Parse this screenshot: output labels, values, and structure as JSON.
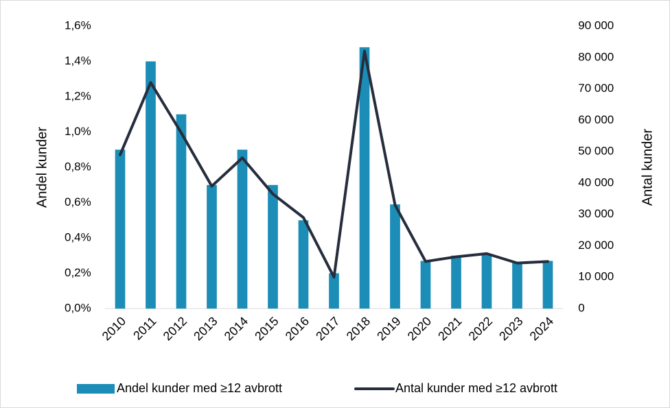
{
  "chart_data": {
    "type": "bar_line",
    "categories": [
      "2010",
      "2011",
      "2012",
      "2013",
      "2014",
      "2015",
      "2016",
      "2017",
      "2018",
      "2019",
      "2020",
      "2021",
      "2022",
      "2023",
      "2024"
    ],
    "series": [
      {
        "name": "Andel kunder med ≥12 avbrott",
        "type": "bar",
        "color": "#1b8db7",
        "axis": "y",
        "values": [
          0.9,
          1.4,
          1.1,
          0.7,
          0.9,
          0.7,
          0.5,
          0.2,
          1.48,
          0.59,
          0.27,
          0.3,
          0.31,
          0.26,
          0.27
        ]
      },
      {
        "name": "Antal kunder med ≥12 avbrott",
        "type": "line",
        "color": "#262d3d",
        "axis": "y2",
        "values": [
          49000,
          72000,
          56000,
          39000,
          48000,
          36500,
          29000,
          10000,
          82000,
          33000,
          15000,
          16500,
          17500,
          14500,
          15000
        ]
      }
    ],
    "ylabel": "Andel kunder",
    "y2label": "Antal kunder",
    "ylim": [
      0,
      1.6
    ],
    "yticks": [
      {
        "value": 0,
        "label": "0,0%"
      },
      {
        "value": 0.2,
        "label": "0,2%"
      },
      {
        "value": 0.4,
        "label": "0,4%"
      },
      {
        "value": 0.6,
        "label": "0,6%"
      },
      {
        "value": 0.8,
        "label": "0,8%"
      },
      {
        "value": 1.0,
        "label": "1,0%"
      },
      {
        "value": 1.2,
        "label": "1,2%"
      },
      {
        "value": 1.4,
        "label": "1,4%"
      },
      {
        "value": 1.6,
        "label": "1,6%"
      }
    ],
    "y2lim": [
      0,
      90000
    ],
    "y2ticks": [
      0,
      {
        "value": 10000,
        "label": "10 000"
      },
      {
        "value": 20000,
        "label": "20 000"
      },
      {
        "value": 30000,
        "label": "30 000"
      },
      {
        "value": 40000,
        "label": "40 000"
      },
      {
        "value": 50000,
        "label": "50 000"
      },
      {
        "value": 60000,
        "label": "60 000"
      },
      {
        "value": 70000,
        "label": "70 000"
      },
      {
        "value": 80000,
        "label": "80 000"
      },
      {
        "value": 90000,
        "label": "90 000"
      }
    ],
    "legend": "bottom"
  }
}
